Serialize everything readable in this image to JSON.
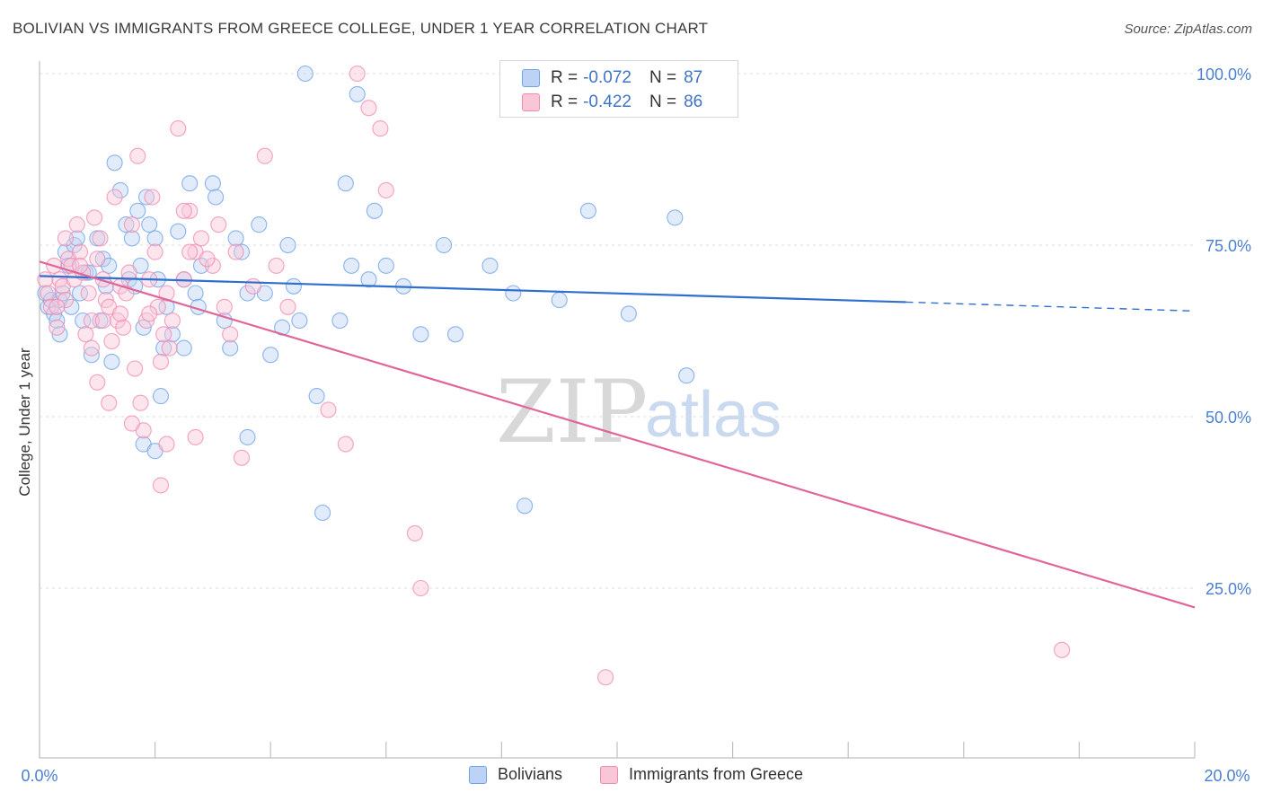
{
  "header": {
    "title": "BOLIVIAN VS IMMIGRANTS FROM GREECE COLLEGE, UNDER 1 YEAR CORRELATION CHART",
    "source": "Source: ZipAtlas.com"
  },
  "watermark": {
    "zip": "ZIP",
    "atlas": "atlas"
  },
  "legend": {
    "rows": [
      {
        "r_label": "R =",
        "r_value": "-0.072",
        "n_label": "N =",
        "n_value": "87",
        "color": "#6fa3e8",
        "fill": "#bcd3f5"
      },
      {
        "r_label": "R =",
        "r_value": "-0.422",
        "n_label": "N =",
        "n_value": "86",
        "color": "#f08bb0",
        "fill": "#f9c6d8"
      }
    ]
  },
  "bottom_legend": {
    "items": [
      {
        "label": "Bolivians",
        "color": "#6fa3e8",
        "fill": "#bcd3f5"
      },
      {
        "label": "Immigrants from Greece",
        "color": "#f08bb0",
        "fill": "#f9c6d8"
      }
    ]
  },
  "chart_data": {
    "type": "scatter",
    "title": "BOLIVIAN VS IMMIGRANTS FROM GREECE COLLEGE, UNDER 1 YEAR CORRELATION CHART",
    "xlabel": "",
    "ylabel": "College, Under 1 year",
    "xlim": [
      0,
      20
    ],
    "ylim": [
      0,
      105
    ],
    "x_tick_labels": [
      "0.0%",
      "20.0%"
    ],
    "y_ticks": [
      25,
      50,
      75,
      100
    ],
    "y_tick_labels": [
      "25.0%",
      "50.0%",
      "75.0%",
      "100.0%"
    ],
    "grid": true,
    "legend_position": "top-center",
    "series": [
      {
        "name": "Bolivians",
        "color": "#6fa3e8",
        "trend": {
          "x": [
            0,
            15
          ],
          "y": [
            70.5,
            66.7
          ],
          "dashed_to": [
            20,
            65.4
          ]
        },
        "points": [
          [
            0.1,
            68
          ],
          [
            0.15,
            66
          ],
          [
            0.2,
            67
          ],
          [
            0.25,
            65
          ],
          [
            0.3,
            64
          ],
          [
            0.35,
            67
          ],
          [
            0.4,
            68
          ],
          [
            0.45,
            74
          ],
          [
            0.5,
            72
          ],
          [
            0.55,
            66
          ],
          [
            0.6,
            75
          ],
          [
            0.65,
            76
          ],
          [
            0.7,
            68
          ],
          [
            0.75,
            64
          ],
          [
            0.8,
            71
          ],
          [
            0.85,
            71
          ],
          [
            0.9,
            59
          ],
          [
            1.0,
            76
          ],
          [
            1.05,
            64
          ],
          [
            1.1,
            73
          ],
          [
            1.15,
            69
          ],
          [
            1.2,
            72
          ],
          [
            1.25,
            58
          ],
          [
            1.3,
            87
          ],
          [
            1.4,
            83
          ],
          [
            1.5,
            78
          ],
          [
            1.55,
            70
          ],
          [
            1.6,
            76
          ],
          [
            1.65,
            69
          ],
          [
            1.7,
            80
          ],
          [
            1.75,
            72
          ],
          [
            1.8,
            63
          ],
          [
            1.85,
            82
          ],
          [
            1.9,
            78
          ],
          [
            2.0,
            76
          ],
          [
            2.05,
            70
          ],
          [
            2.1,
            53
          ],
          [
            2.15,
            60
          ],
          [
            2.2,
            66
          ],
          [
            2.3,
            62
          ],
          [
            2.4,
            77
          ],
          [
            2.5,
            70
          ],
          [
            2.6,
            84
          ],
          [
            2.7,
            68
          ],
          [
            2.75,
            66
          ],
          [
            2.8,
            72
          ],
          [
            3.0,
            84
          ],
          [
            3.05,
            82
          ],
          [
            3.2,
            64
          ],
          [
            3.3,
            60
          ],
          [
            3.4,
            76
          ],
          [
            3.5,
            74
          ],
          [
            3.6,
            68
          ],
          [
            3.8,
            78
          ],
          [
            3.9,
            68
          ],
          [
            4.0,
            59
          ],
          [
            4.2,
            63
          ],
          [
            4.3,
            75
          ],
          [
            4.4,
            69
          ],
          [
            4.5,
            64
          ],
          [
            4.6,
            100
          ],
          [
            4.8,
            53
          ],
          [
            4.9,
            36
          ],
          [
            5.2,
            64
          ],
          [
            5.3,
            84
          ],
          [
            5.4,
            72
          ],
          [
            5.5,
            97
          ],
          [
            5.7,
            70
          ],
          [
            5.8,
            80
          ],
          [
            6.0,
            72
          ],
          [
            6.3,
            69
          ],
          [
            6.6,
            62
          ],
          [
            7.0,
            75
          ],
          [
            7.2,
            62
          ],
          [
            7.8,
            72
          ],
          [
            8.2,
            68
          ],
          [
            8.4,
            37
          ],
          [
            9.0,
            67
          ],
          [
            9.5,
            80
          ],
          [
            10.2,
            65
          ],
          [
            11.0,
            79
          ],
          [
            11.2,
            56
          ],
          [
            0.35,
            62
          ],
          [
            1.8,
            46
          ],
          [
            2.0,
            45
          ],
          [
            3.6,
            47
          ],
          [
            2.5,
            60
          ]
        ]
      },
      {
        "name": "Immigrants from Greece",
        "color": "#f08bb0",
        "trend": {
          "x": [
            0,
            20
          ],
          "y": [
            72.6,
            22.2
          ]
        },
        "points": [
          [
            0.1,
            70
          ],
          [
            0.15,
            68
          ],
          [
            0.2,
            66
          ],
          [
            0.25,
            72
          ],
          [
            0.3,
            63
          ],
          [
            0.35,
            70
          ],
          [
            0.4,
            69
          ],
          [
            0.45,
            67
          ],
          [
            0.5,
            73
          ],
          [
            0.55,
            72
          ],
          [
            0.6,
            70
          ],
          [
            0.65,
            78
          ],
          [
            0.7,
            74
          ],
          [
            0.75,
            71
          ],
          [
            0.8,
            62
          ],
          [
            0.85,
            68
          ],
          [
            0.9,
            64
          ],
          [
            0.95,
            79
          ],
          [
            1.0,
            73
          ],
          [
            1.05,
            76
          ],
          [
            1.1,
            70
          ],
          [
            1.15,
            67
          ],
          [
            1.2,
            66
          ],
          [
            1.25,
            61
          ],
          [
            1.3,
            82
          ],
          [
            1.35,
            64
          ],
          [
            1.4,
            69
          ],
          [
            1.45,
            63
          ],
          [
            1.5,
            68
          ],
          [
            1.55,
            71
          ],
          [
            1.6,
            78
          ],
          [
            1.65,
            57
          ],
          [
            1.7,
            88
          ],
          [
            1.75,
            52
          ],
          [
            1.8,
            48
          ],
          [
            1.85,
            64
          ],
          [
            1.9,
            70
          ],
          [
            1.95,
            82
          ],
          [
            2.0,
            74
          ],
          [
            2.05,
            66
          ],
          [
            2.1,
            58
          ],
          [
            2.15,
            62
          ],
          [
            2.2,
            68
          ],
          [
            2.25,
            60
          ],
          [
            2.3,
            64
          ],
          [
            2.4,
            92
          ],
          [
            2.5,
            70
          ],
          [
            2.6,
            80
          ],
          [
            2.7,
            74
          ],
          [
            2.8,
            76
          ],
          [
            3.0,
            72
          ],
          [
            3.1,
            78
          ],
          [
            3.2,
            66
          ],
          [
            3.3,
            62
          ],
          [
            3.4,
            74
          ],
          [
            3.5,
            44
          ],
          [
            3.7,
            69
          ],
          [
            3.9,
            88
          ],
          [
            4.1,
            72
          ],
          [
            4.3,
            66
          ],
          [
            5.0,
            51
          ],
          [
            5.3,
            46
          ],
          [
            5.5,
            100
          ],
          [
            5.7,
            95
          ],
          [
            5.9,
            92
          ],
          [
            6.0,
            83
          ],
          [
            6.5,
            33
          ],
          [
            6.6,
            25
          ],
          [
            9.8,
            12
          ],
          [
            17.7,
            16
          ],
          [
            2.1,
            40
          ],
          [
            2.7,
            47
          ],
          [
            1.2,
            52
          ],
          [
            0.9,
            60
          ],
          [
            1.4,
            65
          ],
          [
            1.1,
            64
          ],
          [
            2.9,
            73
          ],
          [
            2.5,
            80
          ],
          [
            1.6,
            49
          ],
          [
            0.3,
            66
          ],
          [
            2.6,
            74
          ],
          [
            0.7,
            72
          ],
          [
            1.0,
            55
          ],
          [
            1.9,
            65
          ],
          [
            0.45,
            76
          ],
          [
            2.2,
            46
          ]
        ]
      }
    ]
  }
}
